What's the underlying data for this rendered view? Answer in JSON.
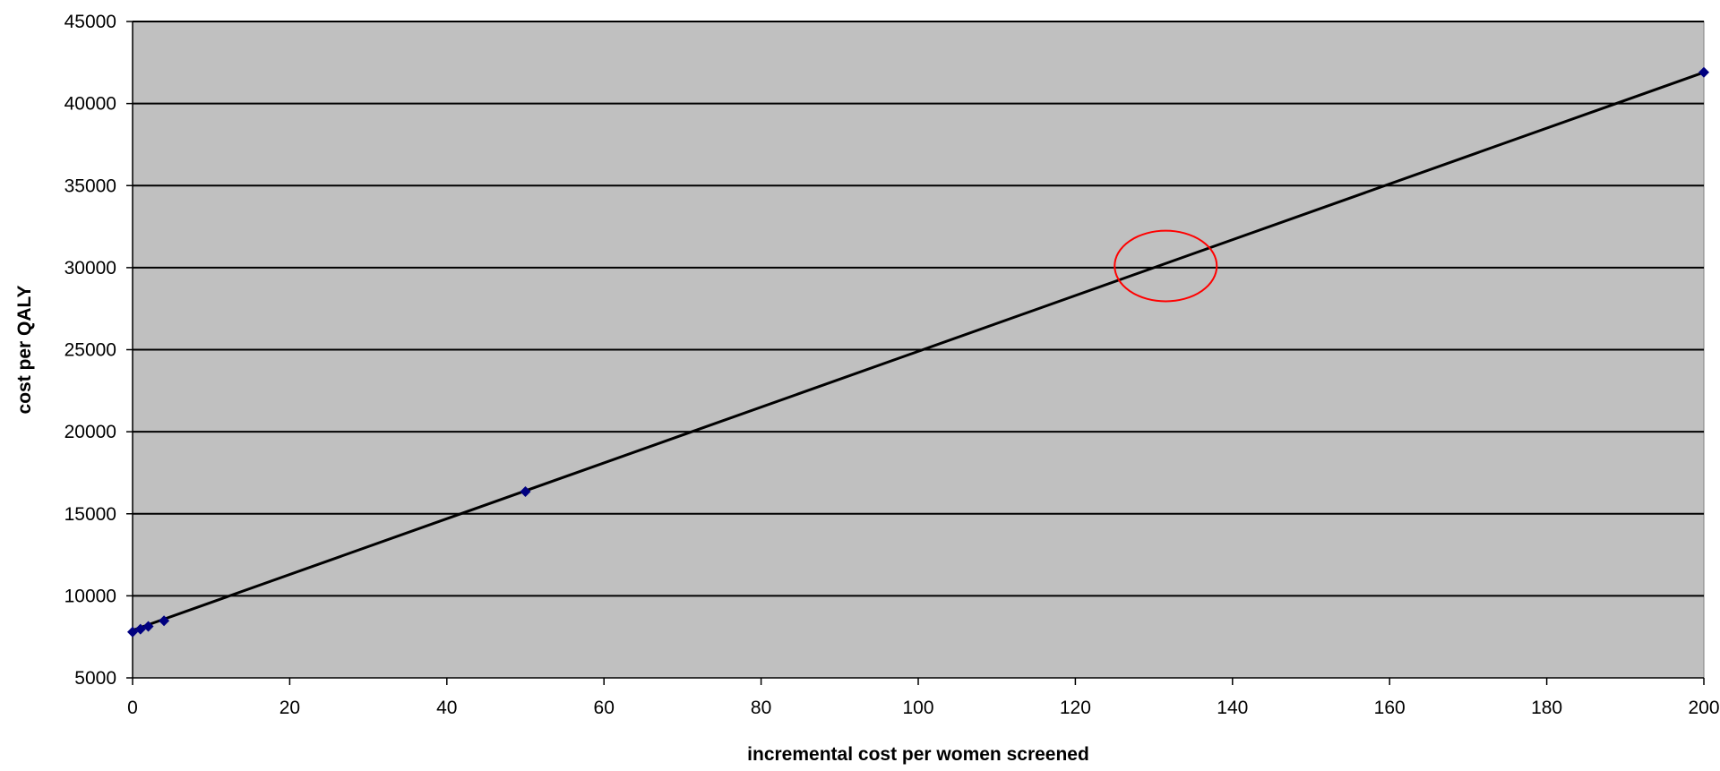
{
  "chart_data": {
    "type": "scatter",
    "title": "",
    "xlabel": "incremental cost per women screened",
    "ylabel": "cost per QALY",
    "xlim": [
      0,
      200
    ],
    "ylim": [
      5000,
      45000
    ],
    "x_ticks": [
      0,
      20,
      40,
      60,
      80,
      100,
      120,
      140,
      160,
      180,
      200
    ],
    "y_ticks": [
      5000,
      10000,
      15000,
      20000,
      25000,
      30000,
      35000,
      40000,
      45000
    ],
    "x_tick_labels": [
      "0",
      "20",
      "40",
      "60",
      "80",
      "100",
      "120",
      "140",
      "160",
      "180",
      "200"
    ],
    "y_tick_labels": [
      "5000",
      "10000",
      "15000",
      "20000",
      "25000",
      "30000",
      "35000",
      "40000",
      "45000"
    ],
    "grid": "horizontal",
    "legend": "none",
    "series": [
      {
        "points": [
          {
            "x": 0,
            "y": 7800
          },
          {
            "x": 1,
            "y": 7970
          },
          {
            "x": 2,
            "y": 8140
          },
          {
            "x": 4,
            "y": 8480
          },
          {
            "x": 50,
            "y": 16350
          },
          {
            "x": 200,
            "y": 41900
          }
        ],
        "trendline": {
          "x0": 0,
          "y0": 7900,
          "x1": 200,
          "y1": 41900
        }
      }
    ],
    "annotations": [
      {
        "type": "ellipse",
        "x": 131.5,
        "y": 30100,
        "rx_data": 6.5,
        "ry_data": 2150
      }
    ],
    "colors": {
      "plot_background": "#c0c0c0",
      "gridline": "#000000",
      "marker": "#000080",
      "trendline": "#000000",
      "annotation": "#ff0000"
    }
  }
}
